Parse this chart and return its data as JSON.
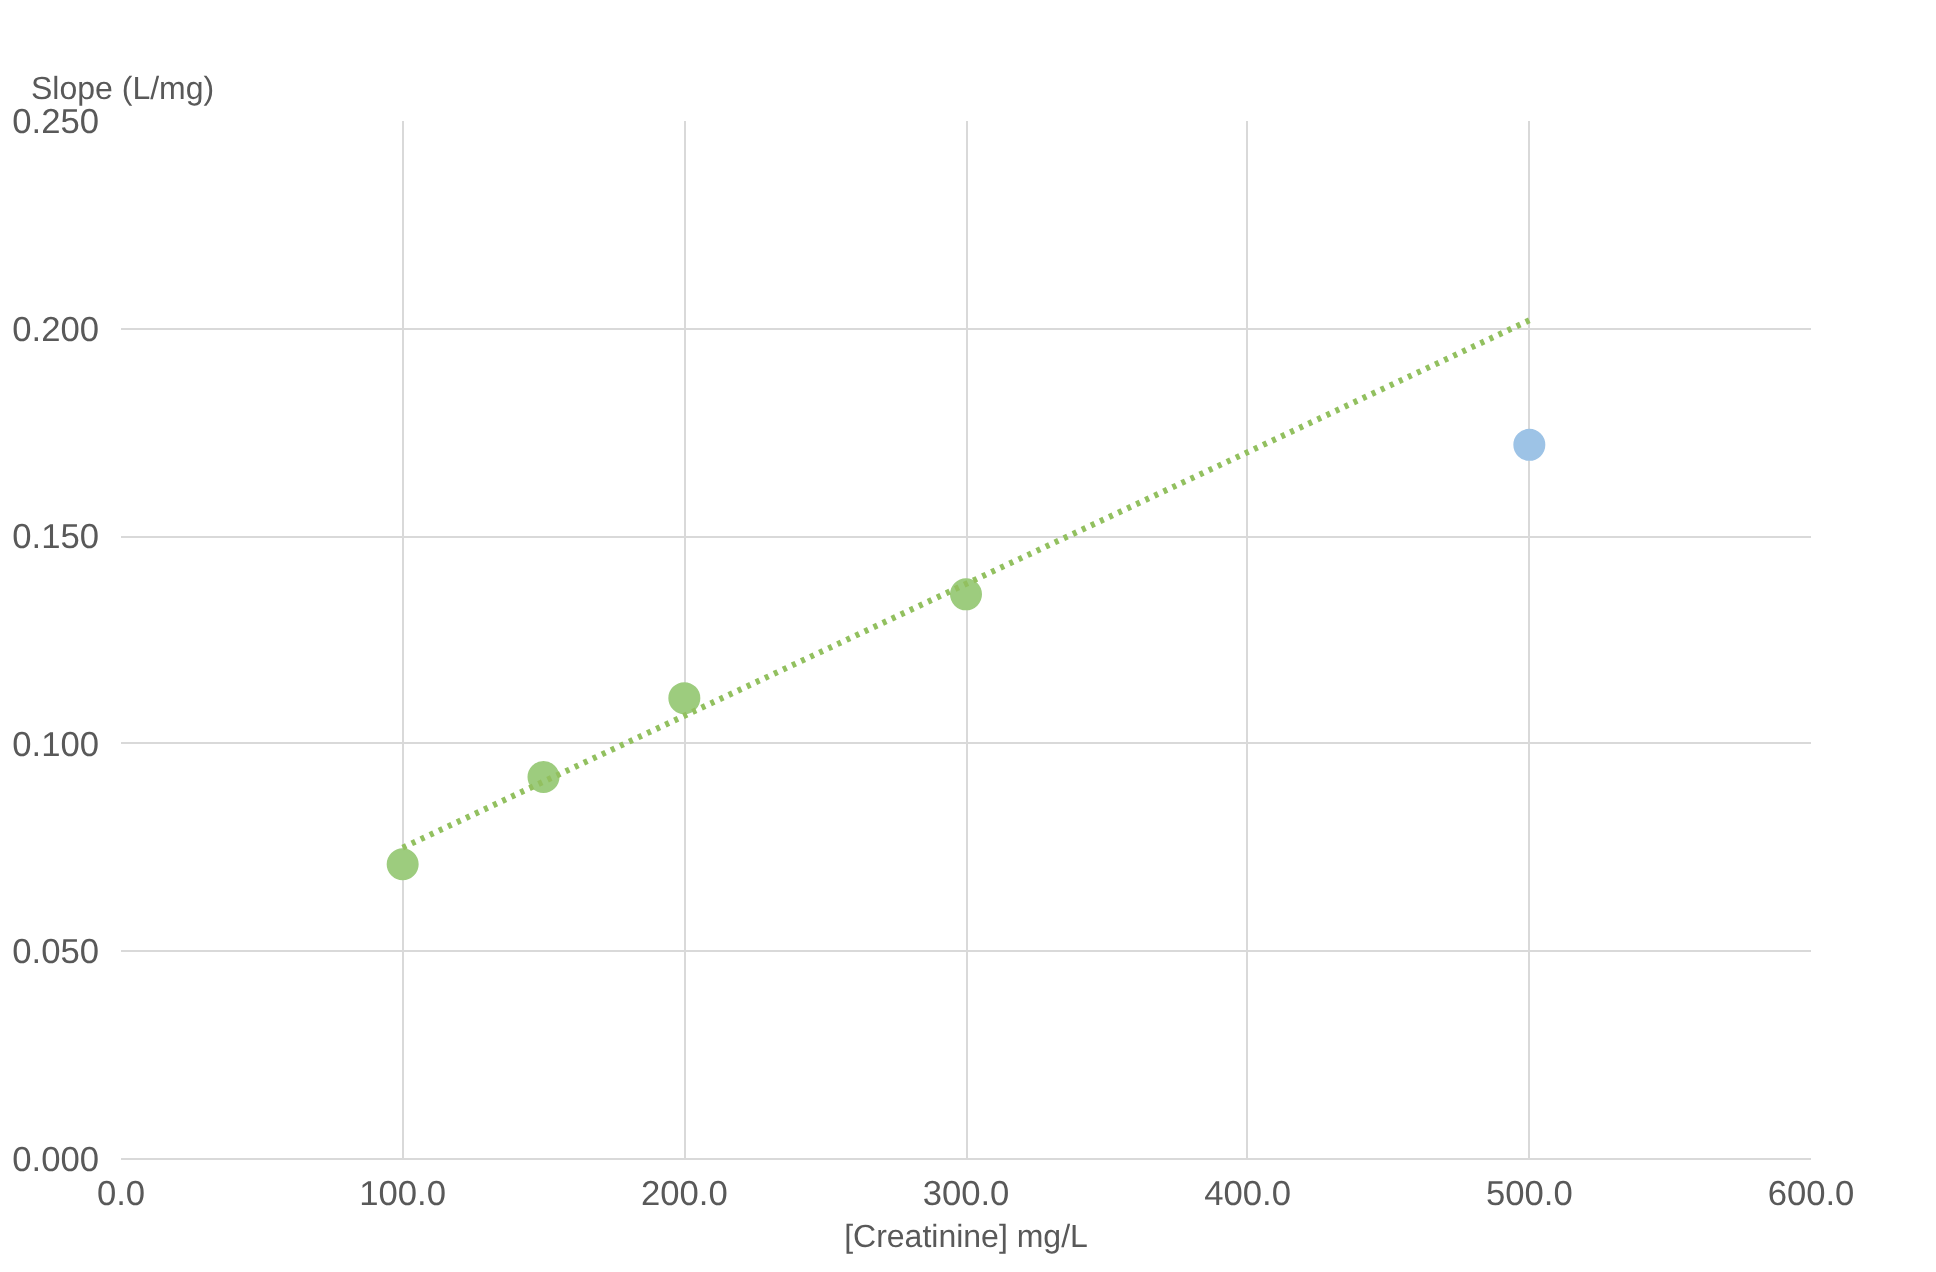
{
  "chart_data": {
    "type": "scatter",
    "xlabel": "[Creatinine] mg/L",
    "ylabel": "Slope (L/mg)",
    "series": [
      {
        "color": "#9dcc7e",
        "x": [
          100,
          150,
          200,
          300
        ],
        "values": [
          0.071,
          0.092,
          0.111,
          0.136
        ],
        "marker": "circle"
      },
      {
        "color": "#9dc3e6",
        "x": [
          500
        ],
        "values": [
          0.172
        ],
        "marker": "circle"
      },
      {
        "type": "line",
        "color": "#92c05f",
        "x": [
          100,
          500
        ],
        "values": [
          0.075,
          0.202
        ],
        "line_style": "dotted",
        "marker": "none"
      }
    ],
    "xlim": [
      0,
      600
    ],
    "xticks": [
      {
        "value": 0,
        "label": "0.0"
      },
      {
        "value": 100,
        "label": "100.0"
      },
      {
        "value": 200,
        "label": "200.0"
      },
      {
        "value": 300,
        "label": "300.0"
      },
      {
        "value": 400,
        "label": "400.0"
      },
      {
        "value": 500,
        "label": "500.0"
      },
      {
        "value": 600,
        "label": "600.0"
      }
    ],
    "ylim": [
      0,
      0.25
    ],
    "yticks": [
      {
        "value": 0,
        "label": "0.000"
      },
      {
        "value": 0.05,
        "label": "0.050"
      },
      {
        "value": 0.1,
        "label": "0.100"
      },
      {
        "value": 0.15,
        "label": "0.150"
      },
      {
        "value": 0.2,
        "label": "0.200"
      },
      {
        "value": 0.25,
        "label": "0.250"
      }
    ],
    "grid": true
  }
}
